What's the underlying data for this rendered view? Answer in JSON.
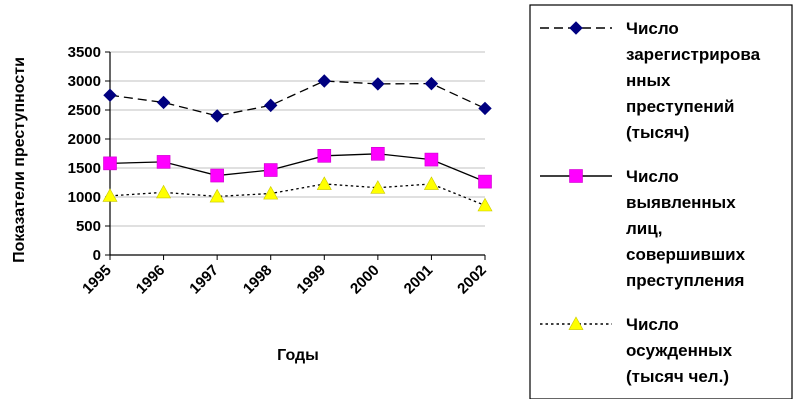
{
  "chart_data": {
    "type": "line",
    "title": "",
    "xlabel": "Годы",
    "ylabel": "Показатели преступности",
    "ylim": [
      0,
      3500
    ],
    "yticks": [
      0,
      500,
      1000,
      1500,
      2000,
      2500,
      3000,
      3500
    ],
    "categories": [
      "1995",
      "1996",
      "1997",
      "1998",
      "1999",
      "2000",
      "2001",
      "2002"
    ],
    "grid": true,
    "legend_position": "right",
    "series": [
      {
        "name_lines": [
          "Число",
          "зарегистрирова",
          "нных",
          "преступений",
          "(тысяч)"
        ],
        "values": [
          2755,
          2630,
          2398,
          2580,
          3000,
          2950,
          2955,
          2527
        ],
        "color": "#000080",
        "line_style": "dashed",
        "marker": "diamond"
      },
      {
        "name_lines": [
          "Число",
          "выявленных",
          "лиц,",
          "совершивших",
          "преступления"
        ],
        "values": [
          1580,
          1605,
          1370,
          1465,
          1710,
          1745,
          1645,
          1265
        ],
        "color": "#ff00ff",
        "line_style": "solid",
        "marker": "square"
      },
      {
        "name_lines": [
          "Число",
          "осужденных",
          "(тысяч чел.)"
        ],
        "values": [
          1020,
          1080,
          1010,
          1060,
          1225,
          1160,
          1225,
          855
        ],
        "color": "#ffff00",
        "line_style": "dotted",
        "marker": "triangle"
      }
    ]
  }
}
